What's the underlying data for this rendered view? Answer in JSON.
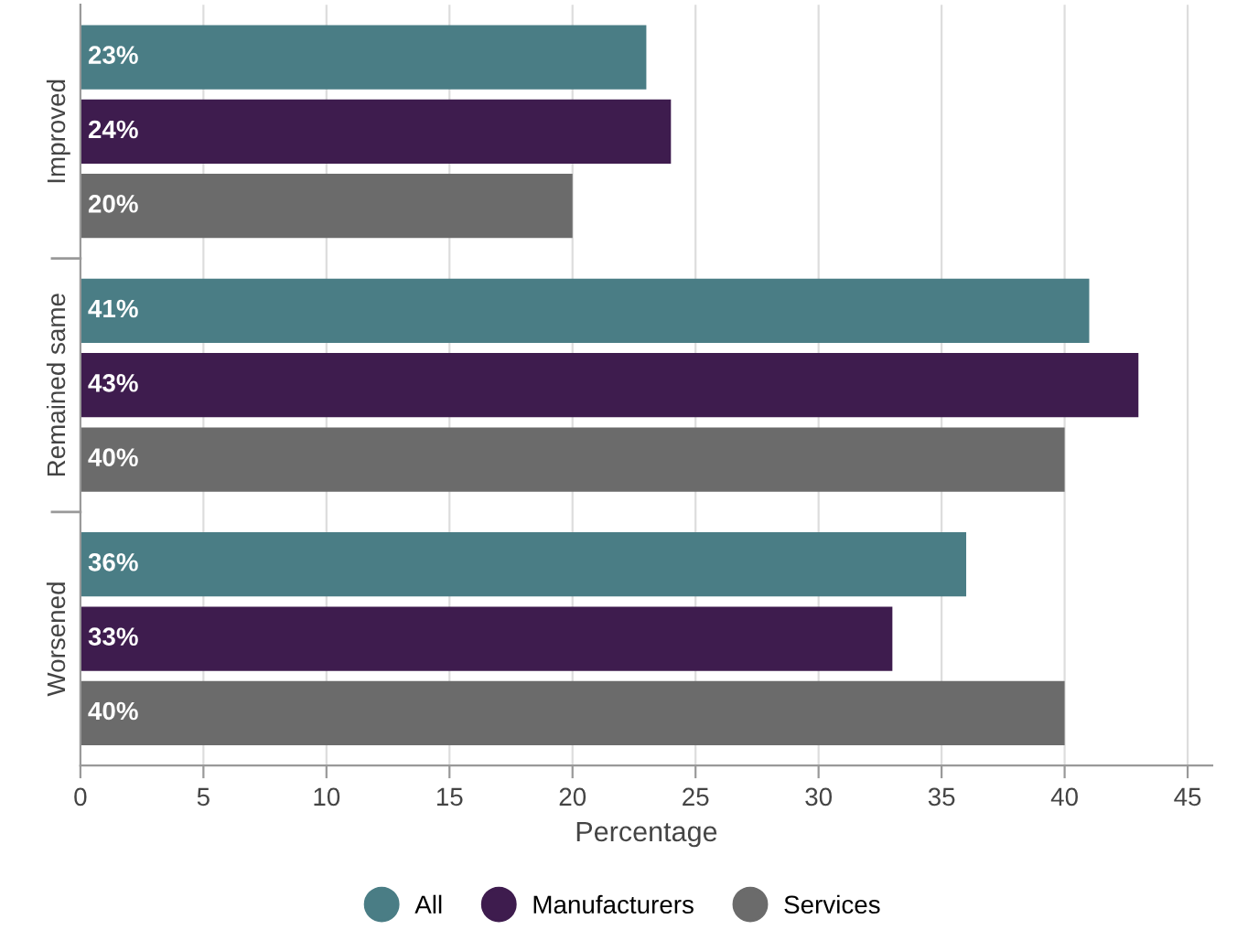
{
  "chart_data": {
    "type": "bar",
    "orientation": "horizontal",
    "xlabel": "Percentage",
    "categories": [
      "Improved",
      "Remained same",
      "Worsened"
    ],
    "series": [
      {
        "name": "All",
        "color": "#4a7d85",
        "values": [
          23,
          41,
          36
        ],
        "value_labels": [
          "23%",
          "41%",
          "36%"
        ]
      },
      {
        "name": "Manufacturers",
        "color": "#3e1c4e",
        "values": [
          24,
          43,
          33
        ],
        "value_labels": [
          "24%",
          "43%",
          "33%"
        ]
      },
      {
        "name": "Services",
        "color": "#6b6b6b",
        "values": [
          20,
          40,
          40
        ],
        "value_labels": [
          "20%",
          "40%",
          "40%"
        ]
      }
    ],
    "xlim": [
      0,
      46
    ],
    "xticks": [
      0,
      5,
      10,
      15,
      20,
      25,
      30,
      35,
      40,
      45
    ],
    "grid": "x",
    "legend": "bottom"
  }
}
